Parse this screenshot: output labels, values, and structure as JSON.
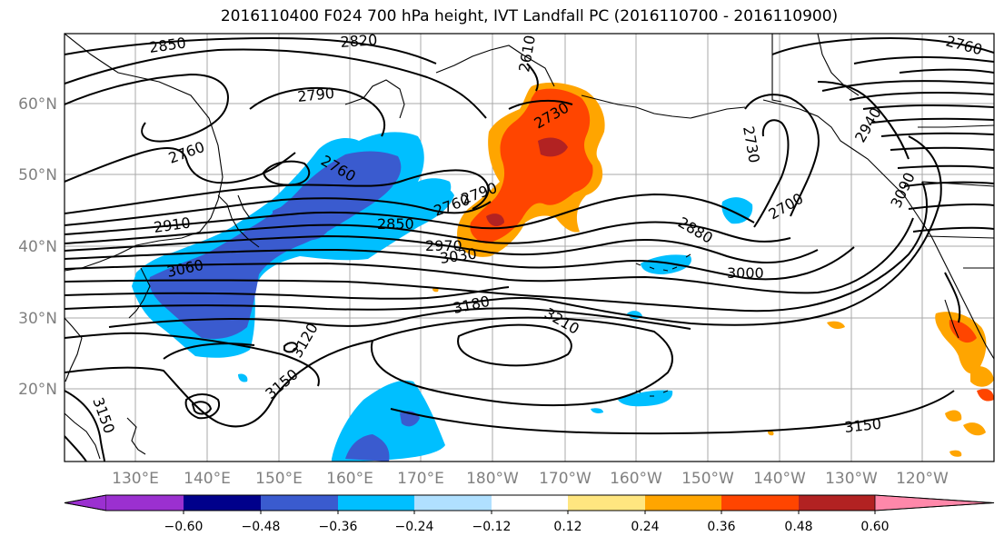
{
  "title": "2016110400 F024 700 hPa height, IVT Landfall PC (2016110700 - 2016110900)",
  "lat_labels": [
    "60°N",
    "50°N",
    "40°N",
    "30°N",
    "20°N"
  ],
  "lon_labels": [
    "130°E",
    "140°E",
    "150°E",
    "160°E",
    "170°E",
    "180°W",
    "170°W",
    "160°W",
    "150°W",
    "140°W",
    "130°W",
    "120°W"
  ],
  "contour_labels": [
    "2850",
    "2820",
    "2790",
    "2760",
    "2760",
    "2730",
    "2730",
    "2700",
    "2940",
    "3090",
    "2910",
    "2850",
    "2970",
    "2880",
    "3030",
    "3000",
    "3060",
    "3180",
    "3210",
    "3120",
    "3150",
    "3150",
    "3150",
    "2760",
    "2790",
    "2760",
    "2610"
  ],
  "colorbar": {
    "colors": [
      "#9b30d0",
      "#00008b",
      "#3a5bcf",
      "#00bfff",
      "#b0e0ff",
      "#ffffff",
      "#ffe680",
      "#ffa500",
      "#ff4500",
      "#b22222",
      "#ff88aa"
    ],
    "tick_labels": [
      "−0.60",
      "−0.48",
      "−0.36",
      "−0.24",
      "−0.12",
      "0.12",
      "0.24",
      "0.36",
      "0.48",
      "0.60"
    ]
  }
}
